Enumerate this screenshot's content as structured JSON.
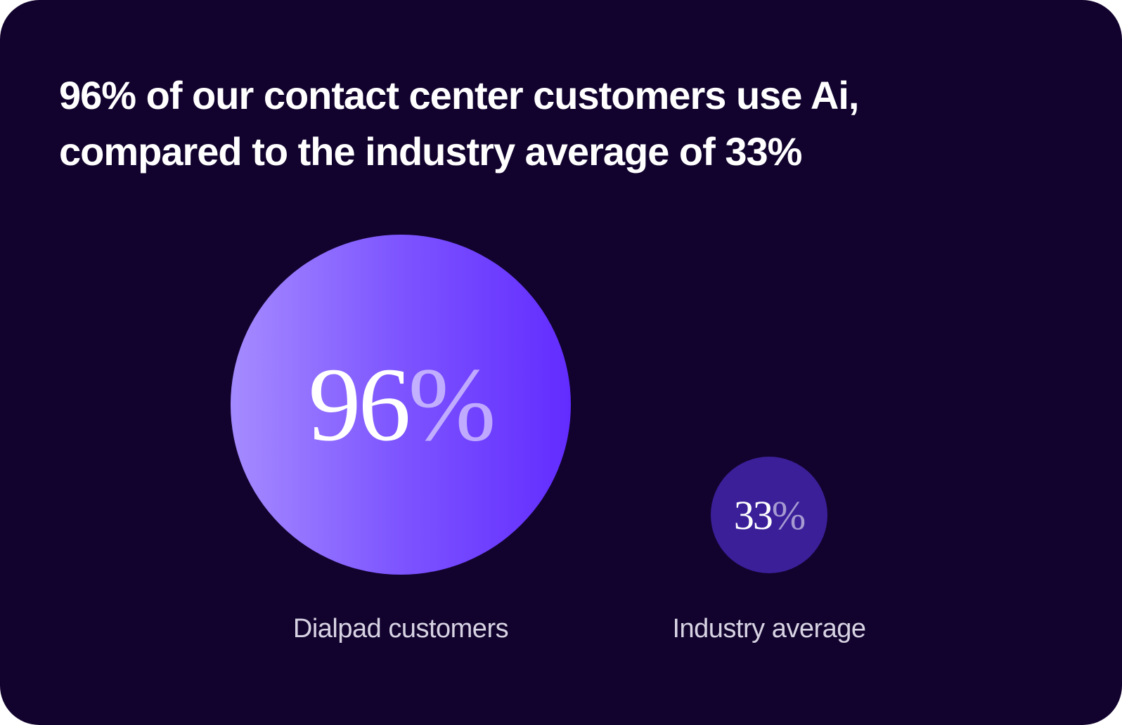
{
  "title": {
    "line1": "96% of our contact center customers use Ai,",
    "line2": "compared to the industry average of 33%"
  },
  "chart_data": {
    "type": "bubble",
    "title": "96% of our contact center customers use Ai, compared to the industry average of 33%",
    "categories": [
      "Dialpad customers",
      "Industry average"
    ],
    "values": [
      96,
      33
    ],
    "unit": "%",
    "value_labels": [
      {
        "number": "96",
        "unit": "%"
      },
      {
        "number": "33",
        "unit": "%"
      }
    ],
    "colors": [
      "#7d54ff",
      "#3a1f99"
    ]
  },
  "colors": {
    "background": "#12032e",
    "accent": "#622cff"
  }
}
